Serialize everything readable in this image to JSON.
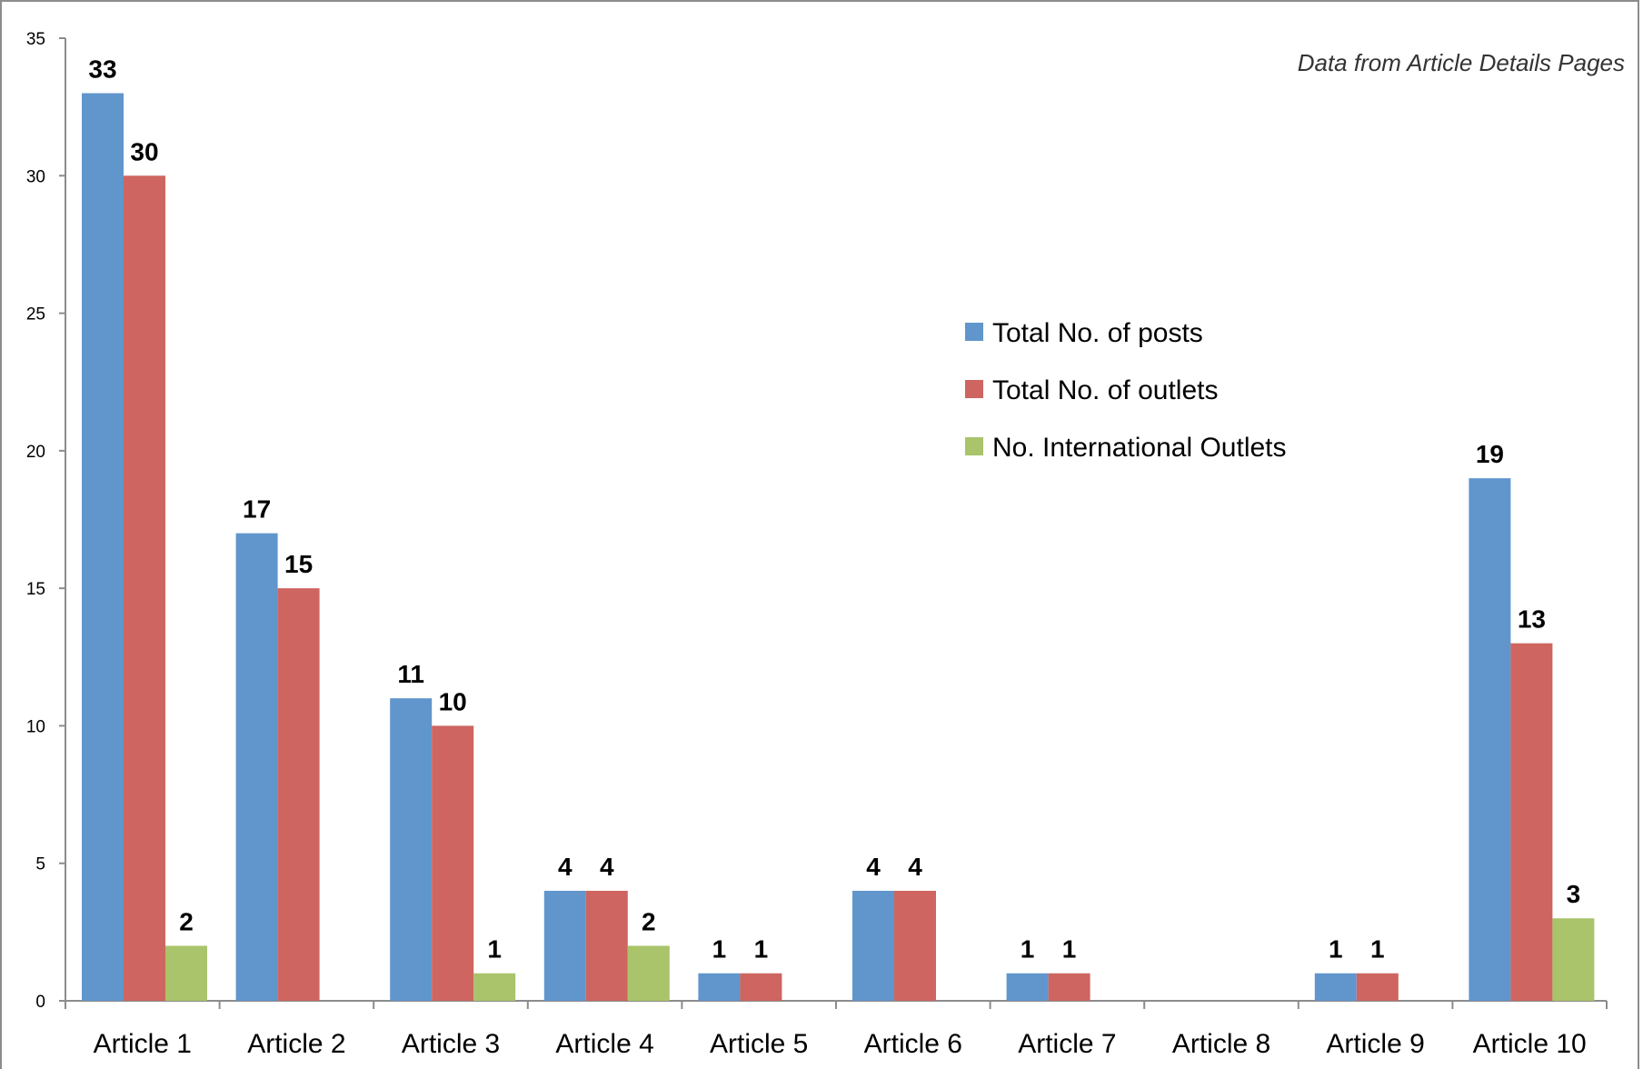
{
  "chart_data": {
    "type": "bar",
    "title": "",
    "annotation": "Data from Article Details Pages",
    "xlabel": "",
    "ylabel": "",
    "ylim": [
      0,
      35
    ],
    "yticks": [
      0,
      5,
      10,
      15,
      20,
      25,
      30,
      35
    ],
    "grid": false,
    "legend_position": "right-middle",
    "categories": [
      "Article 1",
      "Article 2",
      "Article 3",
      "Article 4",
      "Article 5",
      "Article 6",
      "Article 7",
      "Article 8",
      "Article 9",
      "Article 10"
    ],
    "series": [
      {
        "name": "Total No. of posts",
        "color": "#6096cc",
        "values": [
          33,
          17,
          11,
          4,
          1,
          4,
          1,
          0,
          1,
          19
        ]
      },
      {
        "name": "Total No. of outlets",
        "color": "#ce6560",
        "values": [
          30,
          15,
          10,
          4,
          1,
          4,
          1,
          0,
          1,
          13
        ]
      },
      {
        "name": "No. International Outlets",
        "color": "#a9c46a",
        "values": [
          2,
          0,
          1,
          2,
          0,
          0,
          0,
          0,
          0,
          3
        ]
      }
    ]
  }
}
